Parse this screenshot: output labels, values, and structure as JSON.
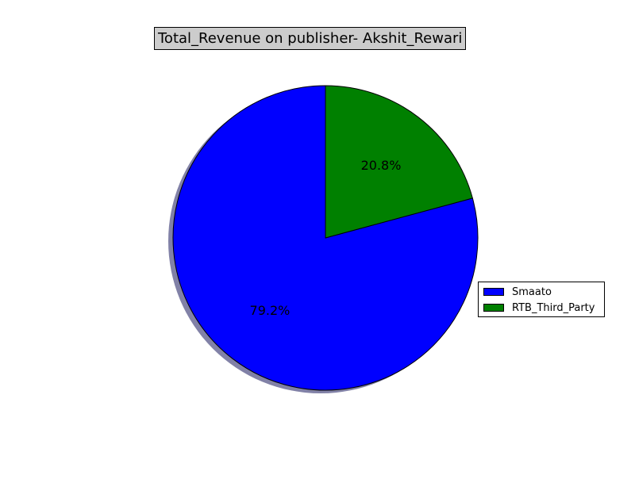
{
  "chart_data": {
    "type": "pie",
    "title": "Total_Revenue on publisher- Akshit_Rewari",
    "slices": [
      {
        "label": "Smaato",
        "value": 79.2,
        "display": "79.2%",
        "color": "#0000ff"
      },
      {
        "label": "RTB_Third_Party",
        "value": 20.8,
        "display": "20.8%",
        "color": "#008000"
      }
    ],
    "start_angle_deg": 90,
    "direction": "counterclockwise",
    "shadow": true,
    "legend": {
      "placement": "right"
    }
  }
}
